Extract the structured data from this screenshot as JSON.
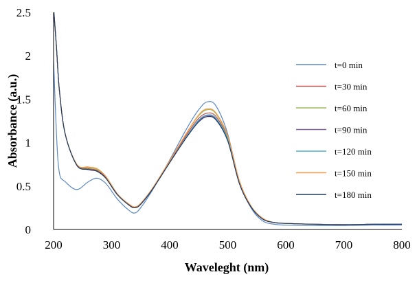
{
  "chart_data": {
    "type": "line",
    "title": "",
    "xlabel": "Waveleght (nm)",
    "ylabel": "Absorbance (a.u.)",
    "xlim": [
      200,
      800
    ],
    "ylim": [
      0,
      2.5
    ],
    "xticks": [
      "200",
      "300",
      "400",
      "500",
      "600",
      "700",
      "800"
    ],
    "yticks": [
      "0",
      "0.5",
      "1",
      "1.5",
      "2",
      "2.5"
    ],
    "grid": false,
    "legend_position": "right",
    "series": [
      {
        "name": "t=0 min",
        "color": "#5b87c5",
        "x": [
          200,
          205,
          210,
          220,
          240,
          260,
          275,
          290,
          310,
          330,
          340,
          350,
          370,
          400,
          430,
          450,
          465,
          480,
          500,
          520,
          540,
          560,
          580,
          600,
          650,
          700,
          750,
          800
        ],
        "y": [
          1.95,
          1.1,
          0.65,
          0.55,
          0.46,
          0.55,
          0.59,
          0.53,
          0.35,
          0.22,
          0.19,
          0.25,
          0.45,
          0.8,
          1.17,
          1.38,
          1.47,
          1.42,
          1.1,
          0.55,
          0.25,
          0.1,
          0.06,
          0.05,
          0.045,
          0.045,
          0.05,
          0.05
        ]
      },
      {
        "name": "t=30 min",
        "color": "#c0504d",
        "x": [
          200,
          205,
          210,
          220,
          240,
          260,
          275,
          290,
          310,
          330,
          340,
          350,
          370,
          400,
          430,
          450,
          465,
          480,
          500,
          520,
          540,
          560,
          580,
          600,
          650,
          700,
          750,
          800
        ],
        "y": [
          2.55,
          2.1,
          1.6,
          1.1,
          0.75,
          0.7,
          0.68,
          0.6,
          0.4,
          0.29,
          0.26,
          0.3,
          0.47,
          0.78,
          1.1,
          1.28,
          1.34,
          1.3,
          1.05,
          0.55,
          0.27,
          0.13,
          0.08,
          0.07,
          0.06,
          0.055,
          0.06,
          0.06
        ]
      },
      {
        "name": "t=60 min",
        "color": "#9bbb59",
        "x": [
          200,
          205,
          210,
          220,
          240,
          260,
          275,
          290,
          310,
          330,
          340,
          350,
          370,
          400,
          430,
          450,
          465,
          480,
          500,
          520,
          540,
          560,
          580,
          600,
          650,
          700,
          750,
          800
        ],
        "y": [
          2.55,
          2.1,
          1.6,
          1.1,
          0.75,
          0.71,
          0.69,
          0.61,
          0.41,
          0.29,
          0.26,
          0.3,
          0.47,
          0.79,
          1.12,
          1.31,
          1.38,
          1.33,
          1.07,
          0.56,
          0.27,
          0.13,
          0.08,
          0.07,
          0.06,
          0.055,
          0.06,
          0.06
        ]
      },
      {
        "name": "t=90 min",
        "color": "#8064a2",
        "x": [
          200,
          205,
          210,
          220,
          240,
          260,
          275,
          290,
          310,
          330,
          340,
          350,
          370,
          400,
          430,
          450,
          465,
          480,
          500,
          520,
          540,
          560,
          580,
          600,
          650,
          700,
          750,
          800
        ],
        "y": [
          2.55,
          2.1,
          1.6,
          1.1,
          0.74,
          0.69,
          0.67,
          0.59,
          0.4,
          0.28,
          0.25,
          0.29,
          0.46,
          0.77,
          1.08,
          1.25,
          1.31,
          1.27,
          1.03,
          0.54,
          0.26,
          0.12,
          0.08,
          0.07,
          0.06,
          0.055,
          0.06,
          0.06
        ]
      },
      {
        "name": "t=120 min",
        "color": "#4bacc6",
        "x": [
          200,
          205,
          210,
          220,
          240,
          260,
          275,
          290,
          310,
          330,
          340,
          350,
          370,
          400,
          430,
          450,
          465,
          480,
          500,
          520,
          540,
          560,
          580,
          600,
          650,
          700,
          750,
          800
        ],
        "y": [
          2.55,
          2.1,
          1.6,
          1.1,
          0.74,
          0.69,
          0.67,
          0.59,
          0.4,
          0.28,
          0.25,
          0.29,
          0.46,
          0.77,
          1.08,
          1.26,
          1.32,
          1.28,
          1.04,
          0.54,
          0.26,
          0.12,
          0.08,
          0.07,
          0.06,
          0.055,
          0.06,
          0.06
        ]
      },
      {
        "name": "t=150 min",
        "color": "#f79646",
        "x": [
          200,
          205,
          210,
          220,
          240,
          260,
          275,
          290,
          310,
          330,
          340,
          350,
          370,
          400,
          430,
          450,
          465,
          480,
          500,
          520,
          540,
          560,
          580,
          600,
          650,
          700,
          750,
          800
        ],
        "y": [
          2.55,
          2.1,
          1.6,
          1.1,
          0.75,
          0.72,
          0.7,
          0.61,
          0.41,
          0.29,
          0.26,
          0.3,
          0.47,
          0.79,
          1.12,
          1.32,
          1.39,
          1.34,
          1.08,
          0.56,
          0.27,
          0.13,
          0.08,
          0.07,
          0.06,
          0.055,
          0.06,
          0.06
        ]
      },
      {
        "name": "t=180 min",
        "color": "#1f3864",
        "x": [
          200,
          205,
          210,
          220,
          240,
          260,
          275,
          290,
          310,
          330,
          340,
          350,
          370,
          400,
          430,
          450,
          465,
          480,
          500,
          520,
          540,
          560,
          580,
          600,
          650,
          700,
          750,
          800
        ],
        "y": [
          2.55,
          2.1,
          1.6,
          1.1,
          0.74,
          0.69,
          0.67,
          0.59,
          0.4,
          0.28,
          0.25,
          0.29,
          0.46,
          0.77,
          1.07,
          1.24,
          1.3,
          1.26,
          1.02,
          0.53,
          0.26,
          0.12,
          0.08,
          0.07,
          0.06,
          0.055,
          0.06,
          0.06
        ]
      }
    ]
  }
}
